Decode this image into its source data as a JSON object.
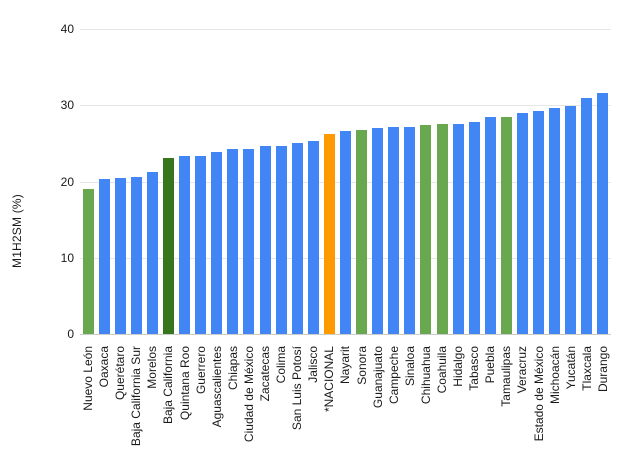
{
  "chart_data": {
    "type": "bar",
    "title": "",
    "xlabel": "",
    "ylabel": "M1H2SM (%)",
    "ylim": [
      0,
      40
    ],
    "yticks": [
      0,
      10,
      20,
      30,
      40
    ],
    "grid": true,
    "legend_position": "none",
    "categories": [
      "Nuevo León",
      "Oaxaca",
      "Querétaro",
      "Baja California Sur",
      "Morelos",
      "Baja California",
      "Quintana Roo",
      "Guerrero",
      "Aguascalientes",
      "Chiapas",
      "Ciudad de México",
      "Zacatecas",
      "Colima",
      "San Luis Potosí",
      "Jalisco",
      "*NACIONAL",
      "Nayarit",
      "Sonora",
      "Guanajuato",
      "Campeche",
      "Sinaloa",
      "Chihuahua",
      "Coahuila",
      "Hidalgo",
      "Tabasco",
      "Puebla",
      "Tamaulipas",
      "Veracruz",
      "Estado de México",
      "Michoacán",
      "Yucatán",
      "Tlaxcala",
      "Durango"
    ],
    "values": [
      19.0,
      20.3,
      20.4,
      20.6,
      21.3,
      23.1,
      23.3,
      23.4,
      23.9,
      24.2,
      24.3,
      24.6,
      24.7,
      25.1,
      25.3,
      26.2,
      26.6,
      26.7,
      27.0,
      27.1,
      27.2,
      27.4,
      27.5,
      27.5,
      27.8,
      28.4,
      28.5,
      29.0,
      29.3,
      29.7,
      29.9,
      30.9,
      31.6
    ],
    "bar_color_keys": [
      "green",
      "blue",
      "blue",
      "blue",
      "blue",
      "darkgreen",
      "blue",
      "blue",
      "blue",
      "blue",
      "blue",
      "blue",
      "blue",
      "blue",
      "blue",
      "orange",
      "blue",
      "green",
      "blue",
      "blue",
      "blue",
      "green",
      "green",
      "blue",
      "blue",
      "blue",
      "green",
      "blue",
      "blue",
      "blue",
      "blue",
      "blue",
      "blue"
    ],
    "palette": {
      "blue": "#4285F4",
      "green": "#6AA84F",
      "darkgreen": "#38761D",
      "orange": "#FF9900"
    },
    "gridline_color": "#e6e6e6",
    "baseline_color": "#cccccc",
    "text_color": "#1a1a1a",
    "background_color": "#ffffff"
  }
}
